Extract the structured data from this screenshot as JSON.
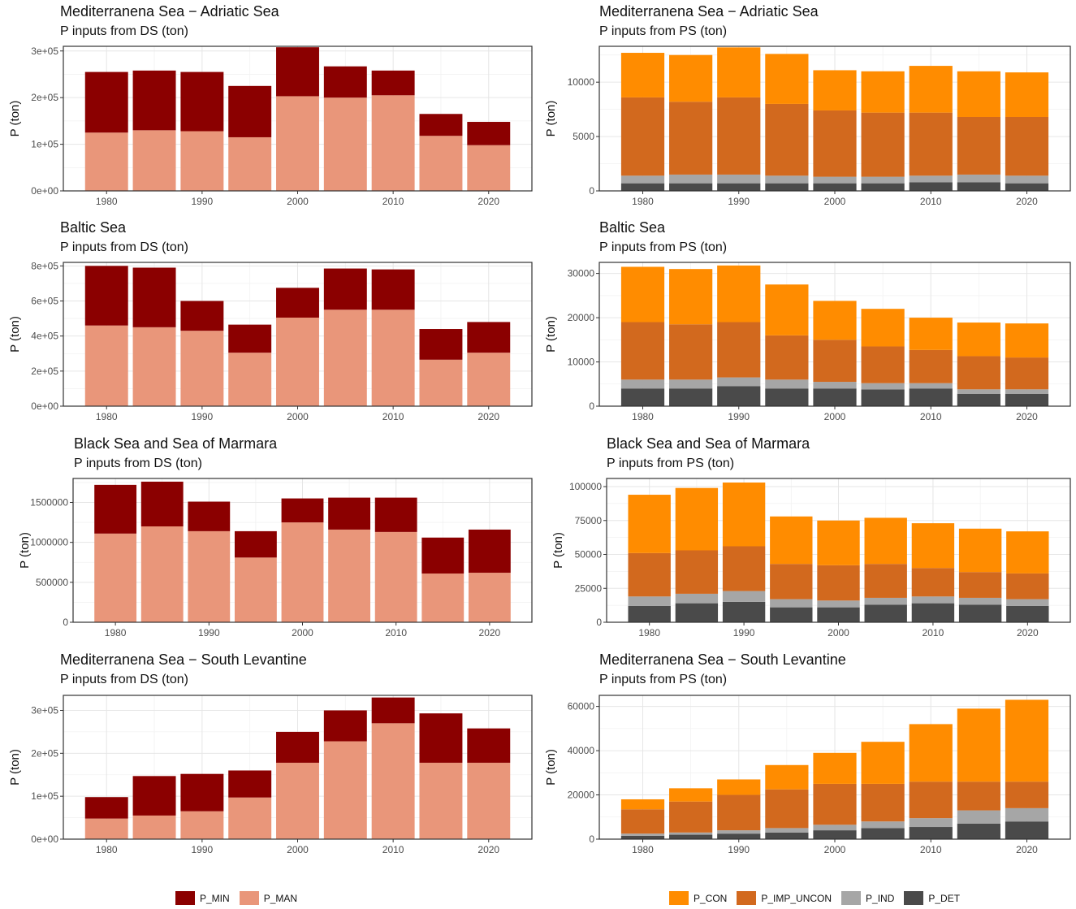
{
  "colors": {
    "P_MIN": "#8b0000",
    "P_MAN": "#e9967a",
    "P_CON": "#ff8c00",
    "P_IMP_UNCON": "#d2691e",
    "P_IND": "#a6a6a6",
    "P_DET": "#4a4a4a"
  },
  "legend_left": [
    {
      "key": "P_MIN",
      "label": "P_MIN"
    },
    {
      "key": "P_MAN",
      "label": "P_MAN"
    }
  ],
  "legend_right": [
    {
      "key": "P_CON",
      "label": "P_CON"
    },
    {
      "key": "P_IMP_UNCON",
      "label": "P_IMP_UNCON"
    },
    {
      "key": "P_IND",
      "label": "P_IND"
    },
    {
      "key": "P_DET",
      "label": "P_DET"
    }
  ],
  "chart_data": [
    {
      "id": "adriatic-ds",
      "type": "bar",
      "stacked": true,
      "title": "Mediterranena Sea − Adriatic Sea",
      "subtitle": "P inputs from DS (ton)",
      "ylabel": "P (ton)",
      "xlabel": "",
      "x": [
        1980,
        1985,
        1990,
        1995,
        2000,
        2005,
        2010,
        2015,
        2020
      ],
      "xticks": [
        1980,
        1990,
        2000,
        2010,
        2020
      ],
      "ylim": [
        0,
        310000
      ],
      "yticks": [
        0,
        100000,
        200000,
        300000
      ],
      "ytick_labels": [
        "0e+00",
        "1e+05",
        "2e+05",
        "3e+05"
      ],
      "series": [
        {
          "name": "P_MAN",
          "values": [
            125000,
            130000,
            128000,
            115000,
            203000,
            200000,
            205000,
            118000,
            98000
          ]
        },
        {
          "name": "P_MIN",
          "values": [
            130000,
            128000,
            127000,
            110000,
            105000,
            67000,
            53000,
            47000,
            50000
          ]
        }
      ]
    },
    {
      "id": "adriatic-ps",
      "type": "bar",
      "stacked": true,
      "title": "Mediterranena Sea − Adriatic Sea",
      "subtitle": "P inputs from PS (ton)",
      "ylabel": "P (ton)",
      "xlabel": "",
      "x": [
        1980,
        1985,
        1990,
        1995,
        2000,
        2005,
        2010,
        2015,
        2020
      ],
      "xticks": [
        1980,
        1990,
        2000,
        2010,
        2020
      ],
      "ylim": [
        0,
        13300
      ],
      "yticks": [
        0,
        5000,
        10000
      ],
      "ytick_labels": [
        "0",
        "5000",
        "10000"
      ],
      "series": [
        {
          "name": "P_DET",
          "values": [
            700,
            700,
            700,
            700,
            700,
            700,
            800,
            800,
            700
          ]
        },
        {
          "name": "P_IND",
          "values": [
            700,
            800,
            800,
            700,
            600,
            600,
            600,
            700,
            700
          ]
        },
        {
          "name": "P_IMP_UNCON",
          "values": [
            7200,
            6700,
            7100,
            6600,
            6100,
            5900,
            5800,
            5300,
            5400
          ]
        },
        {
          "name": "P_CON",
          "values": [
            4100,
            4300,
            4600,
            4600,
            3700,
            3800,
            4300,
            4200,
            4100
          ]
        }
      ]
    },
    {
      "id": "baltic-ds",
      "type": "bar",
      "stacked": true,
      "title": "Baltic Sea",
      "subtitle": "P inputs from DS (ton)",
      "ylabel": "P (ton)",
      "xlabel": "",
      "x": [
        1980,
        1985,
        1990,
        1995,
        2000,
        2005,
        2010,
        2015,
        2020
      ],
      "xticks": [
        1980,
        1990,
        2000,
        2010,
        2020
      ],
      "ylim": [
        0,
        820000
      ],
      "yticks": [
        0,
        200000,
        400000,
        600000,
        800000
      ],
      "ytick_labels": [
        "0e+00",
        "2e+05",
        "4e+05",
        "6e+05",
        "8e+05"
      ],
      "series": [
        {
          "name": "P_MAN",
          "values": [
            460000,
            450000,
            430000,
            305000,
            505000,
            550000,
            550000,
            265000,
            305000
          ]
        },
        {
          "name": "P_MIN",
          "values": [
            340000,
            340000,
            170000,
            160000,
            170000,
            235000,
            230000,
            175000,
            175000
          ]
        }
      ]
    },
    {
      "id": "baltic-ps",
      "type": "bar",
      "stacked": true,
      "title": "Baltic Sea",
      "subtitle": "P inputs from PS (ton)",
      "ylabel": "P (ton)",
      "xlabel": "",
      "x": [
        1980,
        1985,
        1990,
        1995,
        2000,
        2005,
        2010,
        2015,
        2020
      ],
      "xticks": [
        1980,
        1990,
        2000,
        2010,
        2020
      ],
      "ylim": [
        0,
        32500
      ],
      "yticks": [
        0,
        10000,
        20000,
        30000
      ],
      "ytick_labels": [
        "0",
        "10000",
        "20000",
        "30000"
      ],
      "series": [
        {
          "name": "P_DET",
          "values": [
            4000,
            4000,
            4500,
            4000,
            4000,
            3800,
            4000,
            2800,
            2800
          ]
        },
        {
          "name": "P_IND",
          "values": [
            2000,
            2000,
            2000,
            2000,
            1500,
            1400,
            1200,
            1000,
            1000
          ]
        },
        {
          "name": "P_IMP_UNCON",
          "values": [
            13000,
            12500,
            12500,
            10000,
            9500,
            8300,
            7500,
            7500,
            7200
          ]
        },
        {
          "name": "P_CON",
          "values": [
            12500,
            12500,
            12800,
            11500,
            8800,
            8500,
            7300,
            7600,
            7700
          ]
        }
      ]
    },
    {
      "id": "black-ds",
      "type": "bar",
      "stacked": true,
      "title": "Black Sea and Sea of Marmara",
      "subtitle": "P inputs from DS (ton)",
      "ylabel": "P (ton)",
      "xlabel": "",
      "x": [
        1980,
        1985,
        1990,
        1995,
        2000,
        2005,
        2010,
        2015,
        2020
      ],
      "xticks": [
        1980,
        1990,
        2000,
        2010,
        2020
      ],
      "ylim": [
        0,
        1800000
      ],
      "yticks": [
        0,
        500000,
        1000000,
        1500000
      ],
      "ytick_labels": [
        "0",
        "500000",
        "1000000",
        "1500000"
      ],
      "series": [
        {
          "name": "P_MAN",
          "values": [
            1110000,
            1200000,
            1140000,
            810000,
            1250000,
            1160000,
            1130000,
            610000,
            620000
          ]
        },
        {
          "name": "P_MIN",
          "values": [
            610000,
            560000,
            370000,
            330000,
            300000,
            400000,
            430000,
            450000,
            540000
          ]
        }
      ]
    },
    {
      "id": "black-ps",
      "type": "bar",
      "stacked": true,
      "title": "Black Sea and Sea of Marmara",
      "subtitle": "P inputs from PS (ton)",
      "ylabel": "P (ton)",
      "xlabel": "",
      "x": [
        1980,
        1985,
        1990,
        1995,
        2000,
        2005,
        2010,
        2015,
        2020
      ],
      "xticks": [
        1980,
        1990,
        2000,
        2010,
        2020
      ],
      "ylim": [
        0,
        106000
      ],
      "yticks": [
        0,
        25000,
        50000,
        75000,
        100000
      ],
      "ytick_labels": [
        "0",
        "25000",
        "50000",
        "75000",
        "100000"
      ],
      "series": [
        {
          "name": "P_DET",
          "values": [
            12000,
            14000,
            15000,
            11000,
            11000,
            13000,
            14000,
            13000,
            12000
          ]
        },
        {
          "name": "P_IND",
          "values": [
            7000,
            7000,
            8000,
            6000,
            5000,
            5000,
            5000,
            5000,
            5000
          ]
        },
        {
          "name": "P_IMP_UNCON",
          "values": [
            32000,
            32000,
            33000,
            26000,
            26000,
            25000,
            21000,
            19000,
            19000
          ]
        },
        {
          "name": "P_CON",
          "values": [
            43000,
            46000,
            47000,
            35000,
            33000,
            34000,
            33000,
            32000,
            31000
          ]
        }
      ]
    },
    {
      "id": "levant-ds",
      "type": "bar",
      "stacked": true,
      "title": "Mediterranena Sea − South Levantine",
      "subtitle": "P inputs from DS (ton)",
      "ylabel": "P (ton)",
      "xlabel": "",
      "x": [
        1980,
        1985,
        1990,
        1995,
        2000,
        2005,
        2010,
        2015,
        2020
      ],
      "xticks": [
        1980,
        1990,
        2000,
        2010,
        2020
      ],
      "ylim": [
        0,
        335000
      ],
      "yticks": [
        0,
        100000,
        200000,
        300000
      ],
      "ytick_labels": [
        "0e+00",
        "1e+05",
        "2e+05",
        "3e+05"
      ],
      "series": [
        {
          "name": "P_MAN",
          "values": [
            48000,
            55000,
            65000,
            97000,
            178000,
            228000,
            270000,
            178000,
            178000
          ]
        },
        {
          "name": "P_MIN",
          "values": [
            50000,
            92000,
            87000,
            63000,
            72000,
            72000,
            60000,
            115000,
            80000
          ]
        }
      ]
    },
    {
      "id": "levant-ps",
      "type": "bar",
      "stacked": true,
      "title": "Mediterranena Sea − South Levantine",
      "subtitle": "P inputs from PS (ton)",
      "ylabel": "P (ton)",
      "xlabel": "",
      "x": [
        1980,
        1985,
        1990,
        1995,
        2000,
        2005,
        2010,
        2015,
        2020
      ],
      "xticks": [
        1980,
        1990,
        2000,
        2010,
        2020
      ],
      "ylim": [
        0,
        65000
      ],
      "yticks": [
        0,
        20000,
        40000,
        60000
      ],
      "ytick_labels": [
        "0",
        "20000",
        "40000",
        "60000"
      ],
      "series": [
        {
          "name": "P_DET",
          "values": [
            1500,
            2000,
            2500,
            3000,
            4000,
            5000,
            5500,
            7000,
            8000
          ]
        },
        {
          "name": "P_IND",
          "values": [
            1000,
            1000,
            1500,
            2000,
            2500,
            3000,
            4000,
            6000,
            6000
          ]
        },
        {
          "name": "P_IMP_UNCON",
          "values": [
            11000,
            14000,
            16000,
            17500,
            18500,
            17000,
            16500,
            13000,
            12000
          ]
        },
        {
          "name": "P_CON",
          "values": [
            4500,
            6000,
            7000,
            11000,
            14000,
            19000,
            26000,
            33000,
            37000
          ]
        }
      ]
    }
  ]
}
